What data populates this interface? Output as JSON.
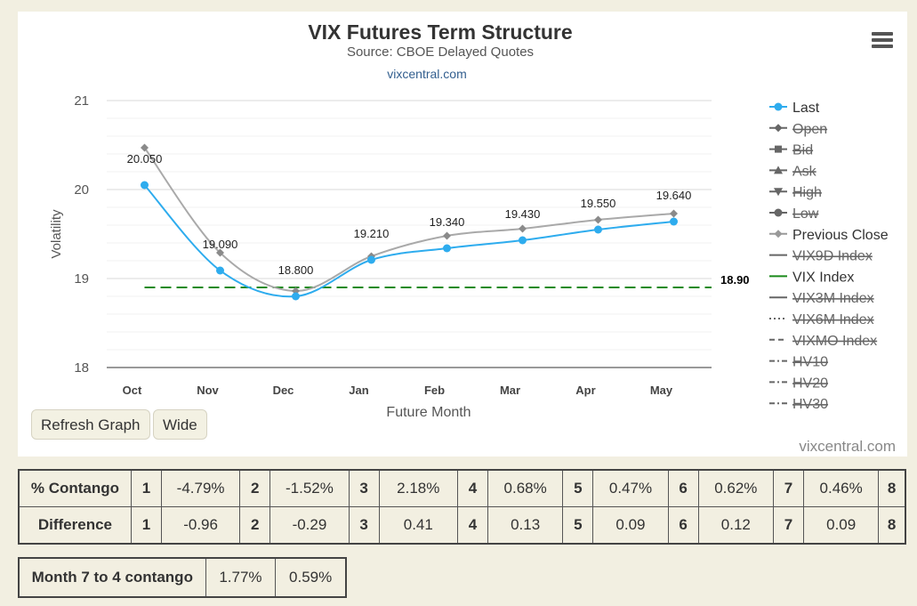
{
  "chart_data": {
    "type": "line",
    "title": "VIX Futures Term Structure",
    "subtitle": "Source: CBOE Delayed Quotes",
    "source_link": "vixcentral.com",
    "credits": "vixcentral.com",
    "xlabel": "Future Month",
    "ylabel": "Volatility",
    "categories": [
      "Oct",
      "Nov",
      "Dec",
      "Jan",
      "Feb",
      "Mar",
      "Apr",
      "May"
    ],
    "ylim": [
      18,
      21
    ],
    "yticks": [
      18,
      19,
      20,
      21
    ],
    "series": [
      {
        "name": "Last",
        "values": [
          20.05,
          19.09,
          18.8,
          19.21,
          19.34,
          19.43,
          19.55,
          19.64
        ],
        "labels": [
          "20.050",
          "19.090",
          "18.800",
          "19.210",
          "19.340",
          "19.430",
          "19.550",
          "19.640"
        ],
        "color": "#2eacee"
      },
      {
        "name": "Previous Close",
        "values": [
          20.47,
          19.29,
          18.86,
          19.25,
          19.48,
          19.56,
          19.66,
          19.73
        ],
        "color": "#a9a9a9"
      }
    ],
    "reference_line": {
      "name": "VIX Index",
      "value": 18.9,
      "label": "18.90",
      "color": "#1a8a1a"
    },
    "legend": [
      {
        "name": "Last",
        "enabled": true,
        "style": "line-dot",
        "color": "#2eacee"
      },
      {
        "name": "Open",
        "enabled": false,
        "style": "line-diamond",
        "color": "#555555"
      },
      {
        "name": "Bid",
        "enabled": false,
        "style": "line-square",
        "color": "#555555"
      },
      {
        "name": "Ask",
        "enabled": false,
        "style": "line-triangle",
        "color": "#555555"
      },
      {
        "name": "High",
        "enabled": false,
        "style": "line-triangle-down",
        "color": "#555555"
      },
      {
        "name": "Low",
        "enabled": false,
        "style": "line-dot",
        "color": "#555555"
      },
      {
        "name": "Previous Close",
        "enabled": true,
        "style": "line-diamond",
        "color": "#999999"
      },
      {
        "name": "VIX9D Index",
        "enabled": false,
        "style": "line",
        "color": "#555555"
      },
      {
        "name": "VIX Index",
        "enabled": true,
        "style": "line",
        "color": "#1a8a1a"
      },
      {
        "name": "VIX3M Index",
        "enabled": false,
        "style": "line",
        "color": "#555555"
      },
      {
        "name": "VIX6M Index",
        "enabled": false,
        "style": "dotted",
        "color": "#555555"
      },
      {
        "name": "VIXMO Index",
        "enabled": false,
        "style": "dashed",
        "color": "#555555"
      },
      {
        "name": "HV10",
        "enabled": false,
        "style": "dash-dot",
        "color": "#555555"
      },
      {
        "name": "HV20",
        "enabled": false,
        "style": "dash-dot",
        "color": "#555555"
      },
      {
        "name": "HV30",
        "enabled": false,
        "style": "dash-dot",
        "color": "#555555"
      }
    ],
    "legend_position": "right",
    "grid": true
  },
  "buttons": {
    "refresh": "Refresh Graph",
    "wide": "Wide"
  },
  "contango_table": {
    "rows": [
      {
        "label": "% Contango",
        "cells": [
          {
            "idx": "1",
            "value": "-4.79%"
          },
          {
            "idx": "2",
            "value": "-1.52%"
          },
          {
            "idx": "3",
            "value": "2.18%"
          },
          {
            "idx": "4",
            "value": "0.68%"
          },
          {
            "idx": "5",
            "value": "0.47%"
          },
          {
            "idx": "6",
            "value": "0.62%"
          },
          {
            "idx": "7",
            "value": "0.46%"
          }
        ],
        "last_idx": "8"
      },
      {
        "label": "Difference",
        "cells": [
          {
            "idx": "1",
            "value": "-0.96"
          },
          {
            "idx": "2",
            "value": "-0.29"
          },
          {
            "idx": "3",
            "value": "0.41"
          },
          {
            "idx": "4",
            "value": "0.13"
          },
          {
            "idx": "5",
            "value": "0.09"
          },
          {
            "idx": "6",
            "value": "0.12"
          },
          {
            "idx": "7",
            "value": "0.09"
          }
        ],
        "last_idx": "8"
      }
    ]
  },
  "month_table": {
    "label": "Month 7 to 4 contango",
    "values": [
      "1.77%",
      "0.59%"
    ]
  }
}
